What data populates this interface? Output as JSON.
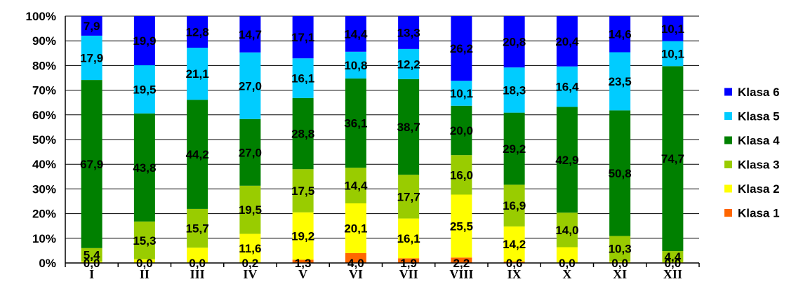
{
  "chart_data": {
    "type": "bar",
    "stacked": "percent",
    "categories": [
      "I",
      "II",
      "III",
      "IV",
      "V",
      "VI",
      "VII",
      "VIII",
      "IX",
      "X",
      "XI",
      "XII"
    ],
    "yticks": [
      "0%",
      "10%",
      "20%",
      "30%",
      "40%",
      "50%",
      "60%",
      "70%",
      "80%",
      "90%",
      "100%"
    ],
    "ylim": [
      0,
      100
    ],
    "grid": true,
    "legend_position": "right",
    "series": [
      {
        "name": "Klasa 1",
        "color": "#ff6600",
        "values": [
          0.0,
          0.0,
          0.0,
          0.2,
          1.3,
          4.0,
          1.9,
          2.2,
          0.6,
          0.0,
          0.0,
          0.0
        ]
      },
      {
        "name": "Klasa 2",
        "color": "#ffff00",
        "values": [
          0.6,
          1.5,
          6.2,
          11.6,
          19.2,
          20.1,
          16.1,
          25.5,
          14.2,
          6.4,
          0.6,
          0.4
        ]
      },
      {
        "name": "Klasa 3",
        "color": "#99cc00",
        "values": [
          5.4,
          15.3,
          15.7,
          19.5,
          17.5,
          14.4,
          17.7,
          16.0,
          16.9,
          14.0,
          10.3,
          4.4
        ]
      },
      {
        "name": "Klasa 4",
        "color": "#008000",
        "values": [
          67.9,
          43.8,
          44.2,
          27.0,
          28.8,
          36.1,
          38.7,
          20.0,
          29.2,
          42.9,
          50.8,
          74.7
        ]
      },
      {
        "name": "Klasa 5",
        "color": "#00ccff",
        "values": [
          17.9,
          19.5,
          21.1,
          27.0,
          16.1,
          10.8,
          12.2,
          10.1,
          18.3,
          16.4,
          23.5,
          10.1
        ]
      },
      {
        "name": "Klasa 6",
        "color": "#0000ff",
        "values": [
          7.9,
          19.9,
          12.8,
          14.7,
          17.1,
          14.4,
          13.3,
          26.2,
          20.8,
          20.4,
          14.6,
          10.1
        ]
      }
    ],
    "data_labels": [
      {
        "category": 0,
        "series": 0,
        "text": "0,0"
      },
      {
        "category": 1,
        "series": 0,
        "text": "0,0"
      },
      {
        "category": 2,
        "series": 0,
        "text": "0,0"
      },
      {
        "category": 3,
        "series": 0,
        "text": "0,2"
      },
      {
        "category": 4,
        "series": 0,
        "text": "1,3"
      },
      {
        "category": 5,
        "series": 0,
        "text": "4,0"
      },
      {
        "category": 6,
        "series": 0,
        "text": "1,9"
      },
      {
        "category": 7,
        "series": 0,
        "text": "2,2"
      },
      {
        "category": 8,
        "series": 0,
        "text": "0,6"
      },
      {
        "category": 9,
        "series": 0,
        "text": "0,0"
      },
      {
        "category": 10,
        "series": 0,
        "text": "0,0"
      },
      {
        "category": 11,
        "series": 0,
        "text": "0,0"
      },
      {
        "category": 3,
        "series": 1,
        "text": "11,6"
      },
      {
        "category": 4,
        "series": 1,
        "text": "19,2"
      },
      {
        "category": 5,
        "series": 1,
        "text": "20,1"
      },
      {
        "category": 6,
        "series": 1,
        "text": "16,1"
      },
      {
        "category": 7,
        "series": 1,
        "text": "25,5"
      },
      {
        "category": 8,
        "series": 1,
        "text": "14,2"
      },
      {
        "category": 0,
        "series": 2,
        "text": "5,4"
      },
      {
        "category": 1,
        "series": 2,
        "text": "15,3"
      },
      {
        "category": 2,
        "series": 2,
        "text": "15,7"
      },
      {
        "category": 3,
        "series": 2,
        "text": "19,5"
      },
      {
        "category": 4,
        "series": 2,
        "text": "17,5"
      },
      {
        "category": 5,
        "series": 2,
        "text": "14,4"
      },
      {
        "category": 6,
        "series": 2,
        "text": "17,7"
      },
      {
        "category": 7,
        "series": 2,
        "text": "16,0"
      },
      {
        "category": 8,
        "series": 2,
        "text": "16,9"
      },
      {
        "category": 9,
        "series": 2,
        "text": "14,0"
      },
      {
        "category": 10,
        "series": 2,
        "text": "10,3"
      },
      {
        "category": 11,
        "series": 2,
        "text": "4,4"
      },
      {
        "category": 0,
        "series": 3,
        "text": "67,9"
      },
      {
        "category": 1,
        "series": 3,
        "text": "43,8"
      },
      {
        "category": 2,
        "series": 3,
        "text": "44,2"
      },
      {
        "category": 3,
        "series": 3,
        "text": "27,0"
      },
      {
        "category": 4,
        "series": 3,
        "text": "28,8"
      },
      {
        "category": 5,
        "series": 3,
        "text": "36,1"
      },
      {
        "category": 6,
        "series": 3,
        "text": "38,7"
      },
      {
        "category": 7,
        "series": 3,
        "text": "20,0"
      },
      {
        "category": 8,
        "series": 3,
        "text": "29,2"
      },
      {
        "category": 9,
        "series": 3,
        "text": "42,9"
      },
      {
        "category": 10,
        "series": 3,
        "text": "50,8"
      },
      {
        "category": 11,
        "series": 3,
        "text": "74,7"
      },
      {
        "category": 0,
        "series": 4,
        "text": "17,9"
      },
      {
        "category": 1,
        "series": 4,
        "text": "19,5"
      },
      {
        "category": 2,
        "series": 4,
        "text": "21,1"
      },
      {
        "category": 3,
        "series": 4,
        "text": "27,0"
      },
      {
        "category": 4,
        "series": 4,
        "text": "16,1"
      },
      {
        "category": 5,
        "series": 4,
        "text": "10,8"
      },
      {
        "category": 6,
        "series": 4,
        "text": "12,2"
      },
      {
        "category": 7,
        "series": 4,
        "text": "10,1"
      },
      {
        "category": 8,
        "series": 4,
        "text": "18,3"
      },
      {
        "category": 9,
        "series": 4,
        "text": "16,4"
      },
      {
        "category": 10,
        "series": 4,
        "text": "23,5"
      },
      {
        "category": 11,
        "series": 4,
        "text": "10,1"
      },
      {
        "category": 0,
        "series": 5,
        "text": "7,9"
      },
      {
        "category": 1,
        "series": 5,
        "text": "19,9"
      },
      {
        "category": 2,
        "series": 5,
        "text": "12,8"
      },
      {
        "category": 3,
        "series": 5,
        "text": "14,7"
      },
      {
        "category": 4,
        "series": 5,
        "text": "17,1"
      },
      {
        "category": 5,
        "series": 5,
        "text": "14,4"
      },
      {
        "category": 6,
        "series": 5,
        "text": "13,3"
      },
      {
        "category": 7,
        "series": 5,
        "text": "26,2"
      },
      {
        "category": 8,
        "series": 5,
        "text": "20,8"
      },
      {
        "category": 9,
        "series": 5,
        "text": "20,4"
      },
      {
        "category": 10,
        "series": 5,
        "text": "14,6"
      },
      {
        "category": 11,
        "series": 5,
        "text": "10,1"
      }
    ]
  }
}
